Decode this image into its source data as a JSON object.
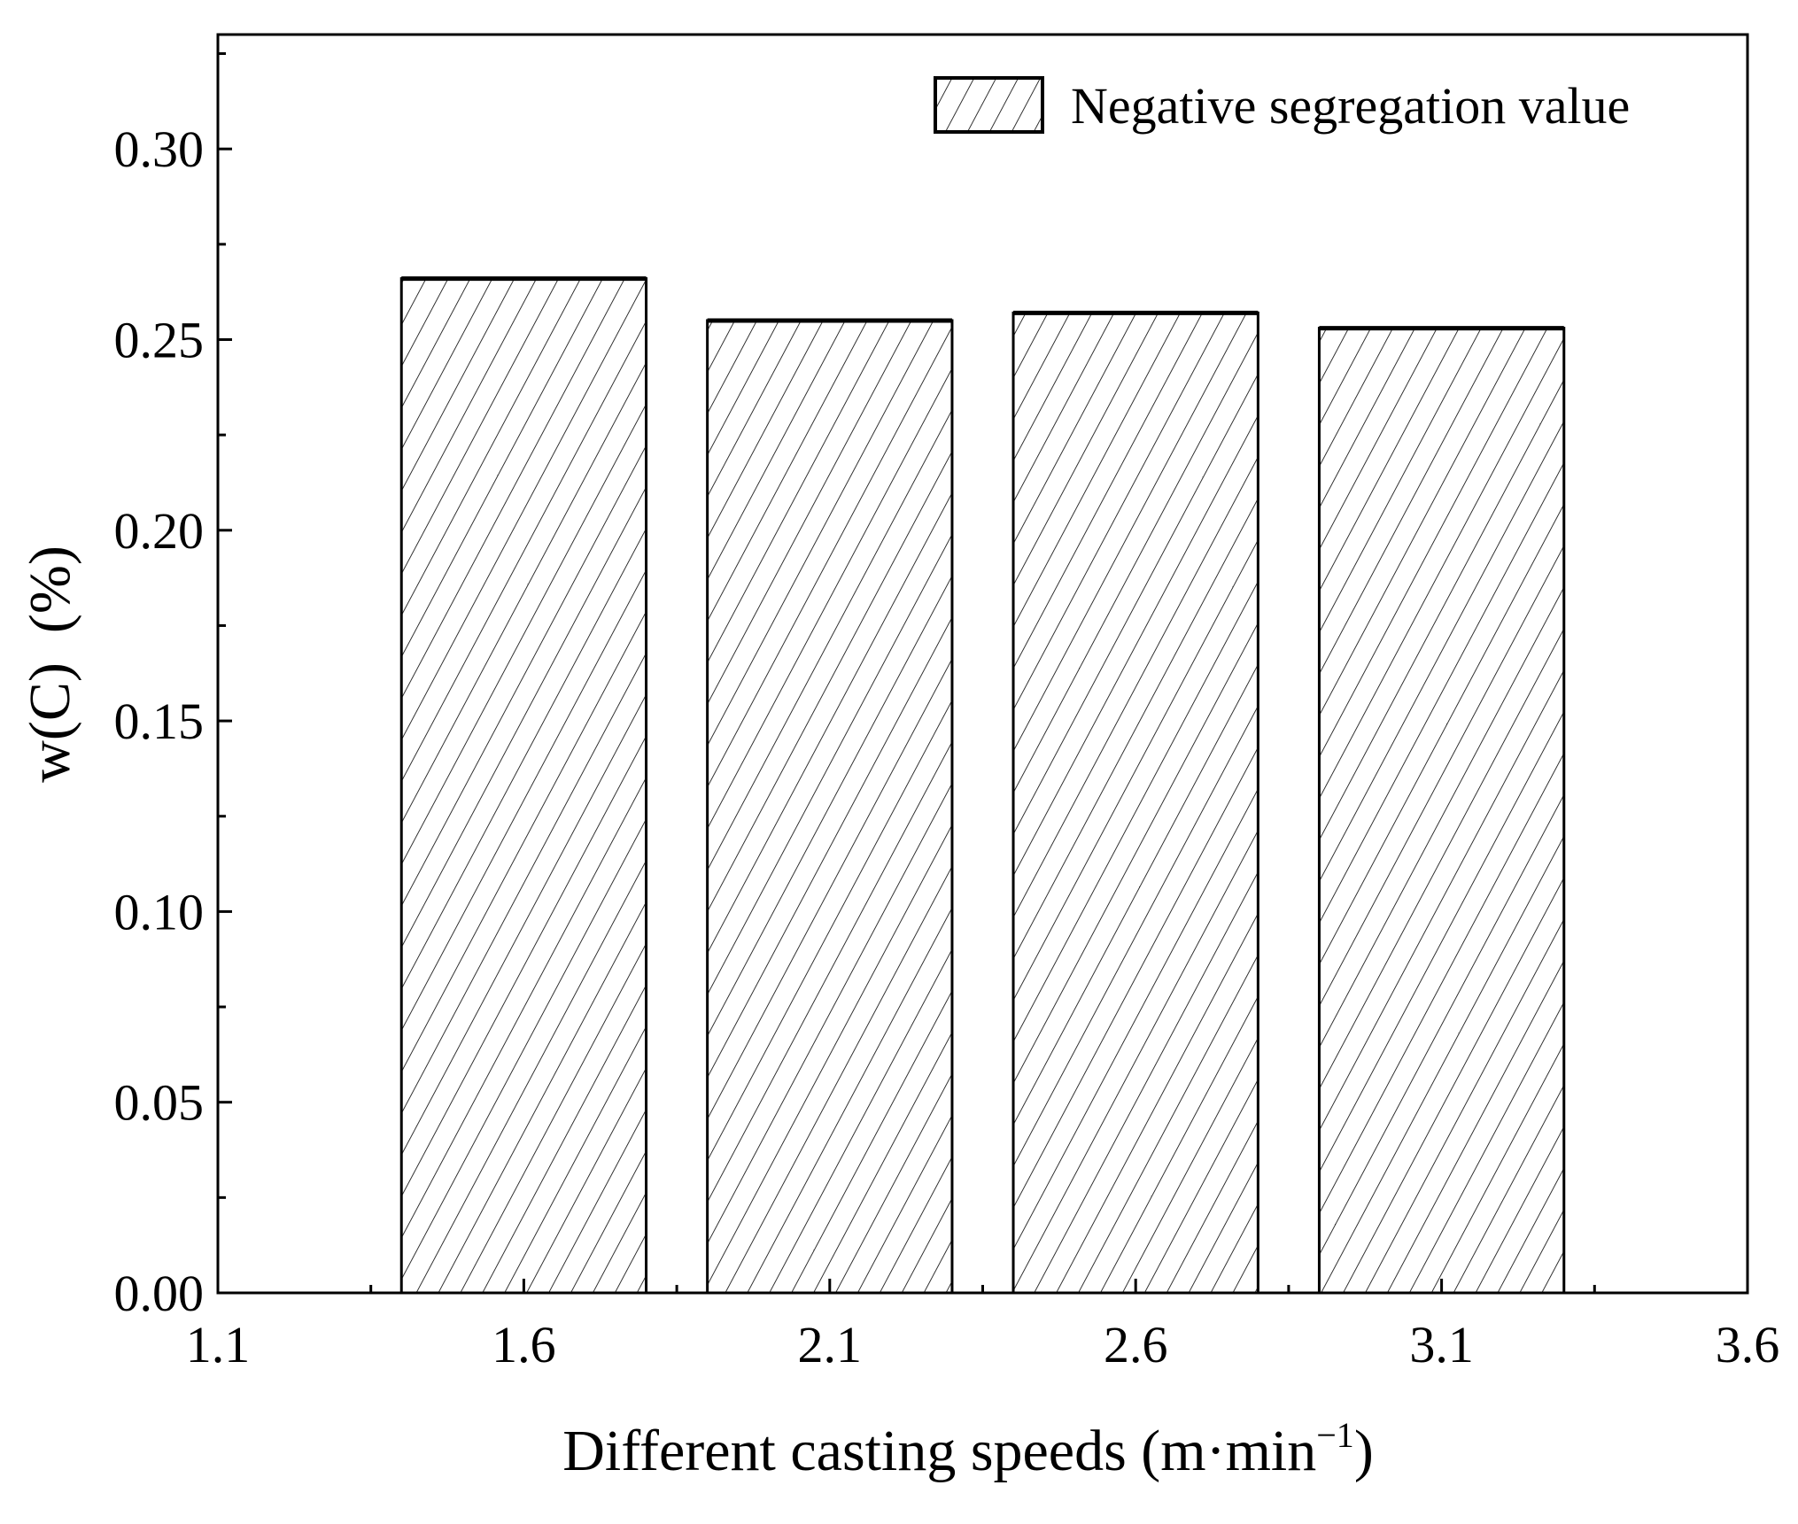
{
  "chart_data": {
    "type": "bar",
    "title": "",
    "xlabel": "Different casting speeds (m·min",
    "xlabel_sup": "−1",
    "xlabel_close": ")",
    "ylabel": "w(C)  (%)",
    "categories": [
      "1.6",
      "2.1",
      "2.6",
      "3.1"
    ],
    "x": [
      1.6,
      2.1,
      2.6,
      3.1
    ],
    "bar_width": 0.4,
    "series": [
      {
        "name": "Negative segregation value",
        "values": [
          0.266,
          0.255,
          0.257,
          0.253
        ],
        "pattern": "diagonal-hatch",
        "color": "#000000"
      }
    ],
    "xlim": [
      1.1,
      3.6
    ],
    "ylim": [
      0,
      0.33
    ],
    "xticks": [
      "1.1",
      "1.6",
      "2.1",
      "2.6",
      "3.1",
      "3.6"
    ],
    "yticks": [
      "0.00",
      "0.05",
      "0.10",
      "0.15",
      "0.20",
      "0.25",
      "0.30"
    ],
    "grid": false,
    "legend": {
      "position": "top-right",
      "entries": [
        "Negative segregation value"
      ]
    }
  }
}
